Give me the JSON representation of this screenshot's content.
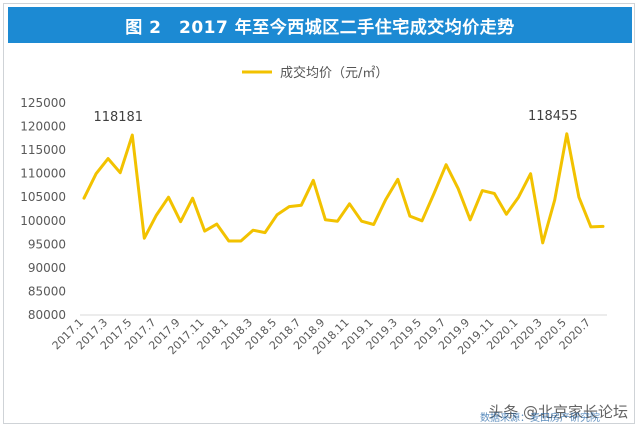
{
  "header": {
    "title": "图 2　2017 年至今西城区二手住宅成交均价走势"
  },
  "watermark": {
    "text": "头条 @北京家长论坛",
    "source": "数据来源：麦田房产研究院"
  },
  "chart_data": {
    "type": "line",
    "title": "图 2　2017 年至今西城区二手住宅成交均价走势",
    "legend": {
      "label": "成交均价（元/㎡）",
      "position": "top-center"
    },
    "color": "#f2c200",
    "x": [
      "2017.1",
      "2017.2",
      "2017.3",
      "2017.4",
      "2017.5",
      "2017.6",
      "2017.7",
      "2017.8",
      "2017.9",
      "2017.10",
      "2017.11",
      "2017.12",
      "2018.1",
      "2018.2",
      "2018.3",
      "2018.4",
      "2018.5",
      "2018.6",
      "2018.7",
      "2018.8",
      "2018.9",
      "2018.10",
      "2018.11",
      "2018.12",
      "2019.1",
      "2019.2",
      "2019.3",
      "2019.4",
      "2019.5",
      "2019.6",
      "2019.7",
      "2019.8",
      "2019.9",
      "2019.10",
      "2019.11",
      "2019.12",
      "2020.1",
      "2020.2",
      "2020.3",
      "2020.4",
      "2020.5",
      "2020.6",
      "2020.7",
      "2020.8"
    ],
    "x_tick_labels": [
      "2017.1",
      "2017.3",
      "2017.5",
      "2017.7",
      "2017.9",
      "2017.11",
      "2018.1",
      "2018.3",
      "2018.5",
      "2018.7",
      "2018.9",
      "2018.11",
      "2019.1",
      "2019.3",
      "2019.5",
      "2019.7",
      "2019.9",
      "2019.11",
      "2020.1",
      "2020.3",
      "2020.5",
      "2020.7"
    ],
    "series": [
      {
        "name": "成交均价（元/㎡）",
        "values": [
          104800,
          110000,
          113200,
          110200,
          118181,
          96300,
          101200,
          105000,
          99800,
          104800,
          97800,
          99300,
          95700,
          95700,
          98000,
          97500,
          101300,
          103000,
          103300,
          108600,
          100200,
          99900,
          103600,
          99900,
          99200,
          104500,
          108800,
          101000,
          100000,
          105800,
          111900,
          106800,
          100200,
          106400,
          105800,
          101400,
          105000,
          110000,
          95300,
          104400,
          118455,
          105000,
          98700,
          98800
        ]
      }
    ],
    "annotations": [
      {
        "x": "2017.5",
        "value": 118181,
        "text": "118181"
      },
      {
        "x": "2020.5",
        "value": 118455,
        "text": "118455"
      }
    ],
    "ylim": [
      80000,
      125000
    ],
    "yticks": [
      80000,
      85000,
      90000,
      95000,
      100000,
      105000,
      110000,
      115000,
      120000,
      125000
    ],
    "grid": false
  }
}
